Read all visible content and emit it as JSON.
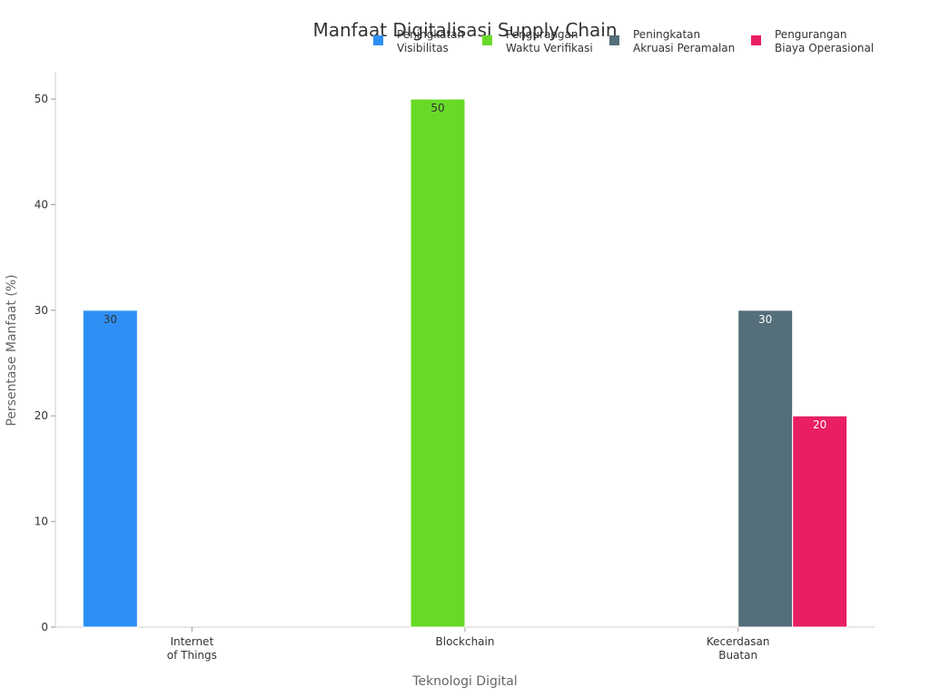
{
  "chart_data": {
    "type": "bar",
    "title": "Manfaat Digitalisasi Supply Chain",
    "xlabel": "Teknologi Digital",
    "ylabel": "Persentase Manfaat (%)",
    "ylim": [
      0,
      52.5
    ],
    "yticks": [
      0,
      10,
      20,
      30,
      40,
      50
    ],
    "categories": [
      [
        "Internet",
        "of Things"
      ],
      [
        "Blockchain"
      ],
      [
        "Kecerdasan",
        "Buatan"
      ]
    ],
    "legend_position": "top-right",
    "grid": false,
    "series": [
      {
        "name": [
          "Peningkatan",
          "Visibilitas"
        ],
        "color": "#2E90F5",
        "label_color": "#333333",
        "values": [
          30,
          null,
          null
        ]
      },
      {
        "name": [
          "Pengurangan",
          "Waktu Verifikasi"
        ],
        "color": "#67DA28",
        "label_color": "#333333",
        "values": [
          null,
          50,
          null
        ]
      },
      {
        "name": [
          "Peningkatan",
          "Akruasi Peramalan"
        ],
        "color": "#546E7A",
        "label_color": "#ffffff",
        "values": [
          null,
          null,
          30
        ]
      },
      {
        "name": [
          "Pengurangan",
          "Biaya Operasional"
        ],
        "color": "#E91E63",
        "label_color": "#ffffff",
        "values": [
          null,
          null,
          20
        ]
      }
    ]
  }
}
